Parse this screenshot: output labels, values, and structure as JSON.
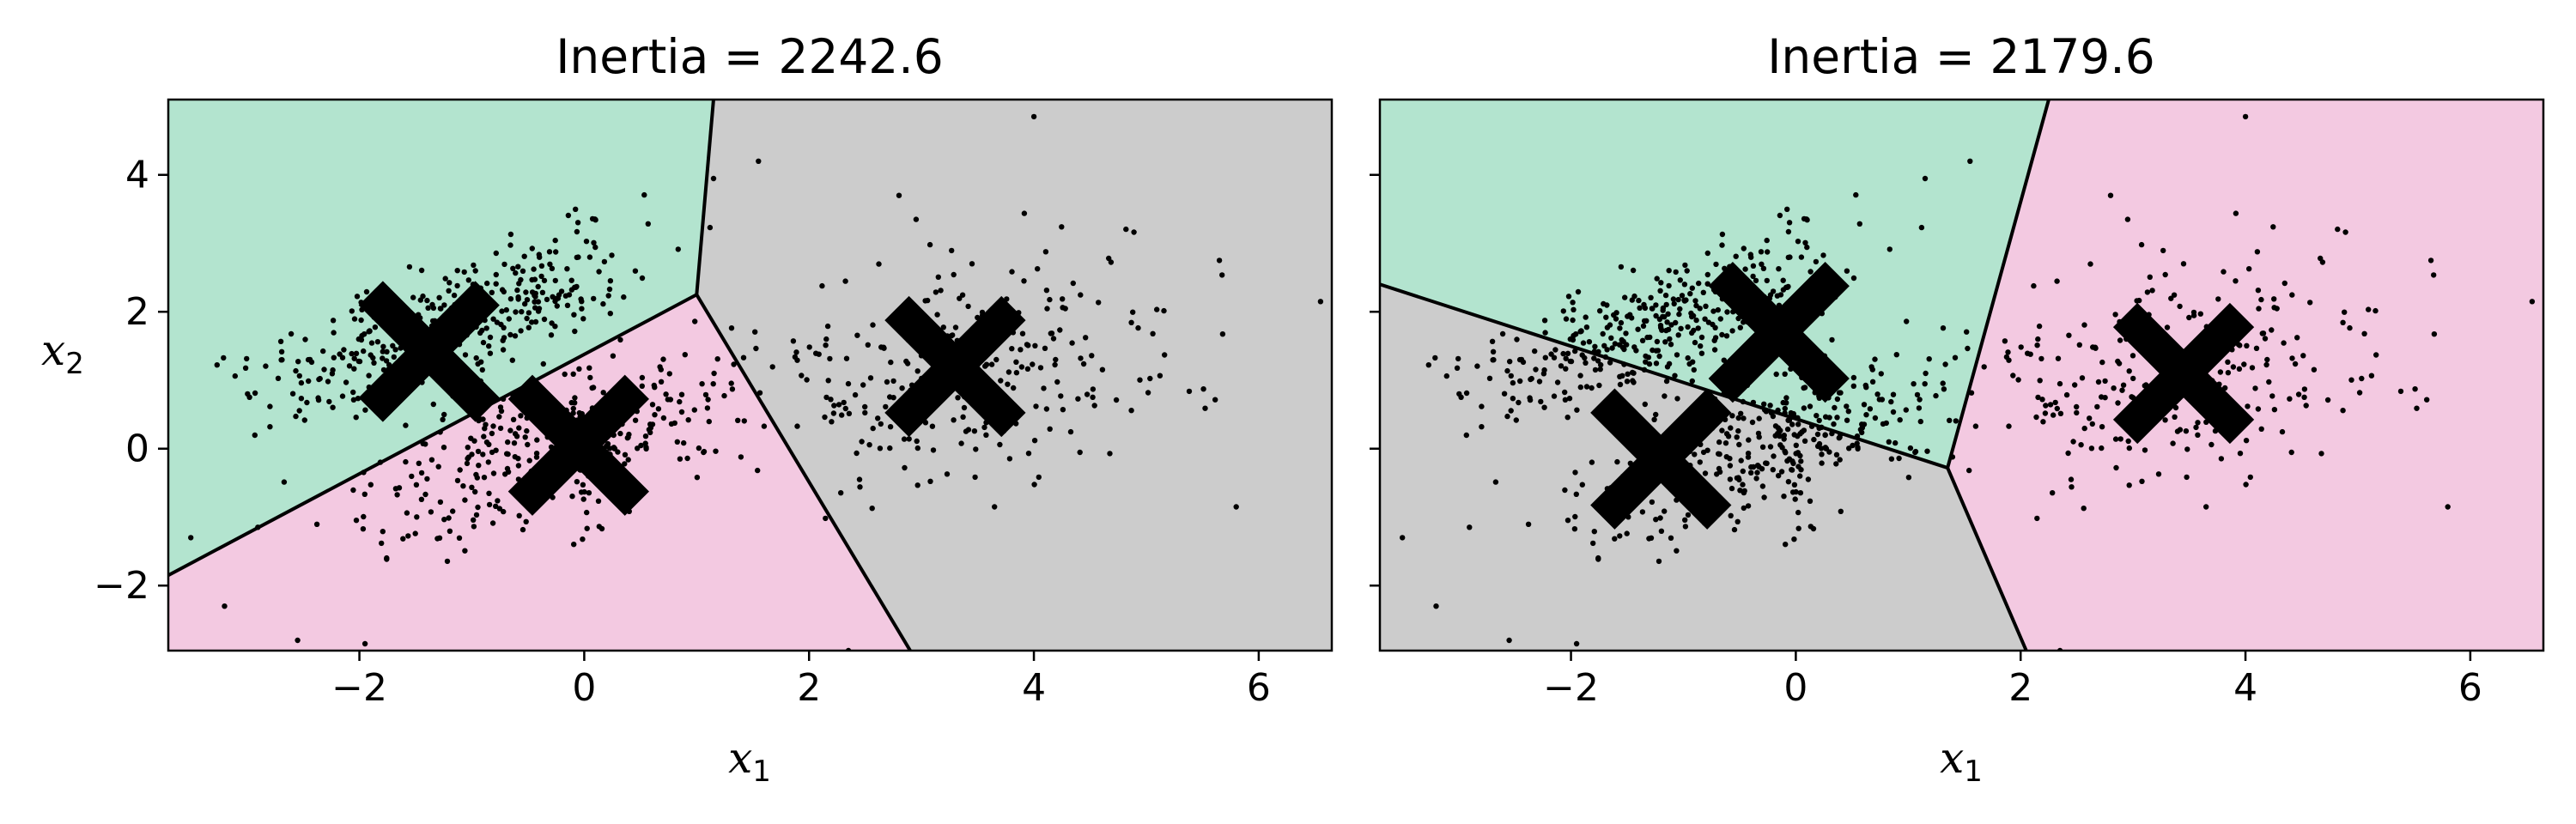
{
  "chart_data": [
    {
      "type": "scatter",
      "title": "Inertia = 2242.6",
      "xlabel": "x",
      "xlabel_sub": "1",
      "ylabel": "x",
      "ylabel_sub": "2",
      "xlim": [
        -3.7,
        6.65
      ],
      "ylim": [
        -2.95,
        5.1
      ],
      "xticks": [
        -2,
        0,
        2,
        4,
        6
      ],
      "yticks": [
        -2,
        0,
        2,
        4
      ],
      "xtick_labels": [
        "−2",
        "0",
        "2",
        "4",
        "6"
      ],
      "ytick_labels": [
        "−2",
        "0",
        "2",
        "4"
      ],
      "centroids": [
        {
          "x": -1.38,
          "y": 1.42
        },
        {
          "x": -0.05,
          "y": 0.05
        },
        {
          "x": 3.3,
          "y": 1.2
        }
      ],
      "regions": [
        {
          "color": "#b3e4cf",
          "polygon": [
            [
              -3.7,
              5.1
            ],
            [
              1.15,
              5.1
            ],
            [
              1.0,
              2.25
            ],
            [
              -3.7,
              -1.85
            ]
          ]
        },
        {
          "color": "#f3c9e1",
          "polygon": [
            [
              -3.7,
              -1.85
            ],
            [
              1.0,
              2.25
            ],
            [
              2.9,
              -2.95
            ],
            [
              -3.7,
              -2.95
            ]
          ]
        },
        {
          "color": "#cccccc",
          "polygon": [
            [
              1.15,
              5.1
            ],
            [
              6.65,
              5.1
            ],
            [
              6.65,
              -2.95
            ],
            [
              2.9,
              -2.95
            ],
            [
              1.0,
              2.25
            ]
          ]
        }
      ],
      "boundaries": [
        [
          [
            1.15,
            5.1
          ],
          [
            1.0,
            2.25
          ]
        ],
        [
          [
            1.0,
            2.25
          ],
          [
            -3.7,
            -1.85
          ]
        ],
        [
          [
            1.0,
            2.25
          ],
          [
            2.9,
            -2.95
          ]
        ]
      ]
    },
    {
      "type": "scatter",
      "title": "Inertia = 2179.6",
      "xlabel": "x",
      "xlabel_sub": "1",
      "xlim": [
        -3.7,
        6.65
      ],
      "ylim": [
        -2.95,
        5.1
      ],
      "xticks": [
        -2,
        0,
        2,
        4,
        6
      ],
      "yticks": [
        -2,
        0,
        2,
        4
      ],
      "xtick_labels": [
        "−2",
        "0",
        "2",
        "4",
        "6"
      ],
      "ytick_labels": [],
      "centroids": [
        {
          "x": -0.15,
          "y": 1.7
        },
        {
          "x": -1.2,
          "y": -0.15
        },
        {
          "x": 3.45,
          "y": 1.1
        }
      ],
      "regions": [
        {
          "color": "#b3e4cf",
          "polygon": [
            [
              -3.7,
              5.1
            ],
            [
              2.25,
              5.1
            ],
            [
              1.35,
              -0.28
            ],
            [
              -3.7,
              2.4
            ]
          ]
        },
        {
          "color": "#cccccc",
          "polygon": [
            [
              -3.7,
              2.4
            ],
            [
              1.35,
              -0.28
            ],
            [
              2.05,
              -2.95
            ],
            [
              -3.7,
              -2.95
            ]
          ]
        },
        {
          "color": "#f3c9e1",
          "polygon": [
            [
              2.25,
              5.1
            ],
            [
              6.65,
              5.1
            ],
            [
              6.65,
              -2.95
            ],
            [
              2.05,
              -2.95
            ],
            [
              1.35,
              -0.28
            ]
          ]
        }
      ],
      "boundaries": [
        [
          [
            2.25,
            5.1
          ],
          [
            1.35,
            -0.28
          ]
        ],
        [
          [
            1.35,
            -0.28
          ],
          [
            -3.7,
            2.4
          ]
        ],
        [
          [
            1.35,
            -0.28
          ],
          [
            2.05,
            -2.95
          ]
        ]
      ]
    }
  ],
  "scatter_data": {
    "clusters": [
      {
        "center": [
          -1.5,
          1.6
        ],
        "sx": 0.75,
        "sy": 0.55,
        "rho": 0.6,
        "count": 250
      },
      {
        "center": [
          0.05,
          0.2
        ],
        "sx": 0.7,
        "sy": 0.65,
        "rho": 0.55,
        "count": 230
      },
      {
        "center": [
          -0.9,
          -0.4
        ],
        "sx": 0.8,
        "sy": 0.7,
        "rho": 0.5,
        "count": 120
      },
      {
        "center": [
          -0.6,
          2.3
        ],
        "sx": 0.6,
        "sy": 0.55,
        "rho": 0.6,
        "count": 120
      },
      {
        "center": [
          3.3,
          1.1
        ],
        "sx": 1.0,
        "sy": 0.8,
        "rho": 0.2,
        "count": 270
      }
    ],
    "outliers": [
      [
        -3.5,
        -1.3
      ],
      [
        -3.2,
        -2.3
      ],
      [
        -2.55,
        -2.8
      ],
      [
        -1.95,
        -2.85
      ],
      [
        1.55,
        4.2
      ],
      [
        4.0,
        4.85
      ],
      [
        5.8,
        -0.85
      ],
      [
        6.55,
        2.15
      ],
      [
        5.65,
        2.75
      ],
      [
        2.35,
        -2.95
      ],
      [
        3.65,
        -0.85
      ],
      [
        2.8,
        3.7
      ]
    ]
  }
}
